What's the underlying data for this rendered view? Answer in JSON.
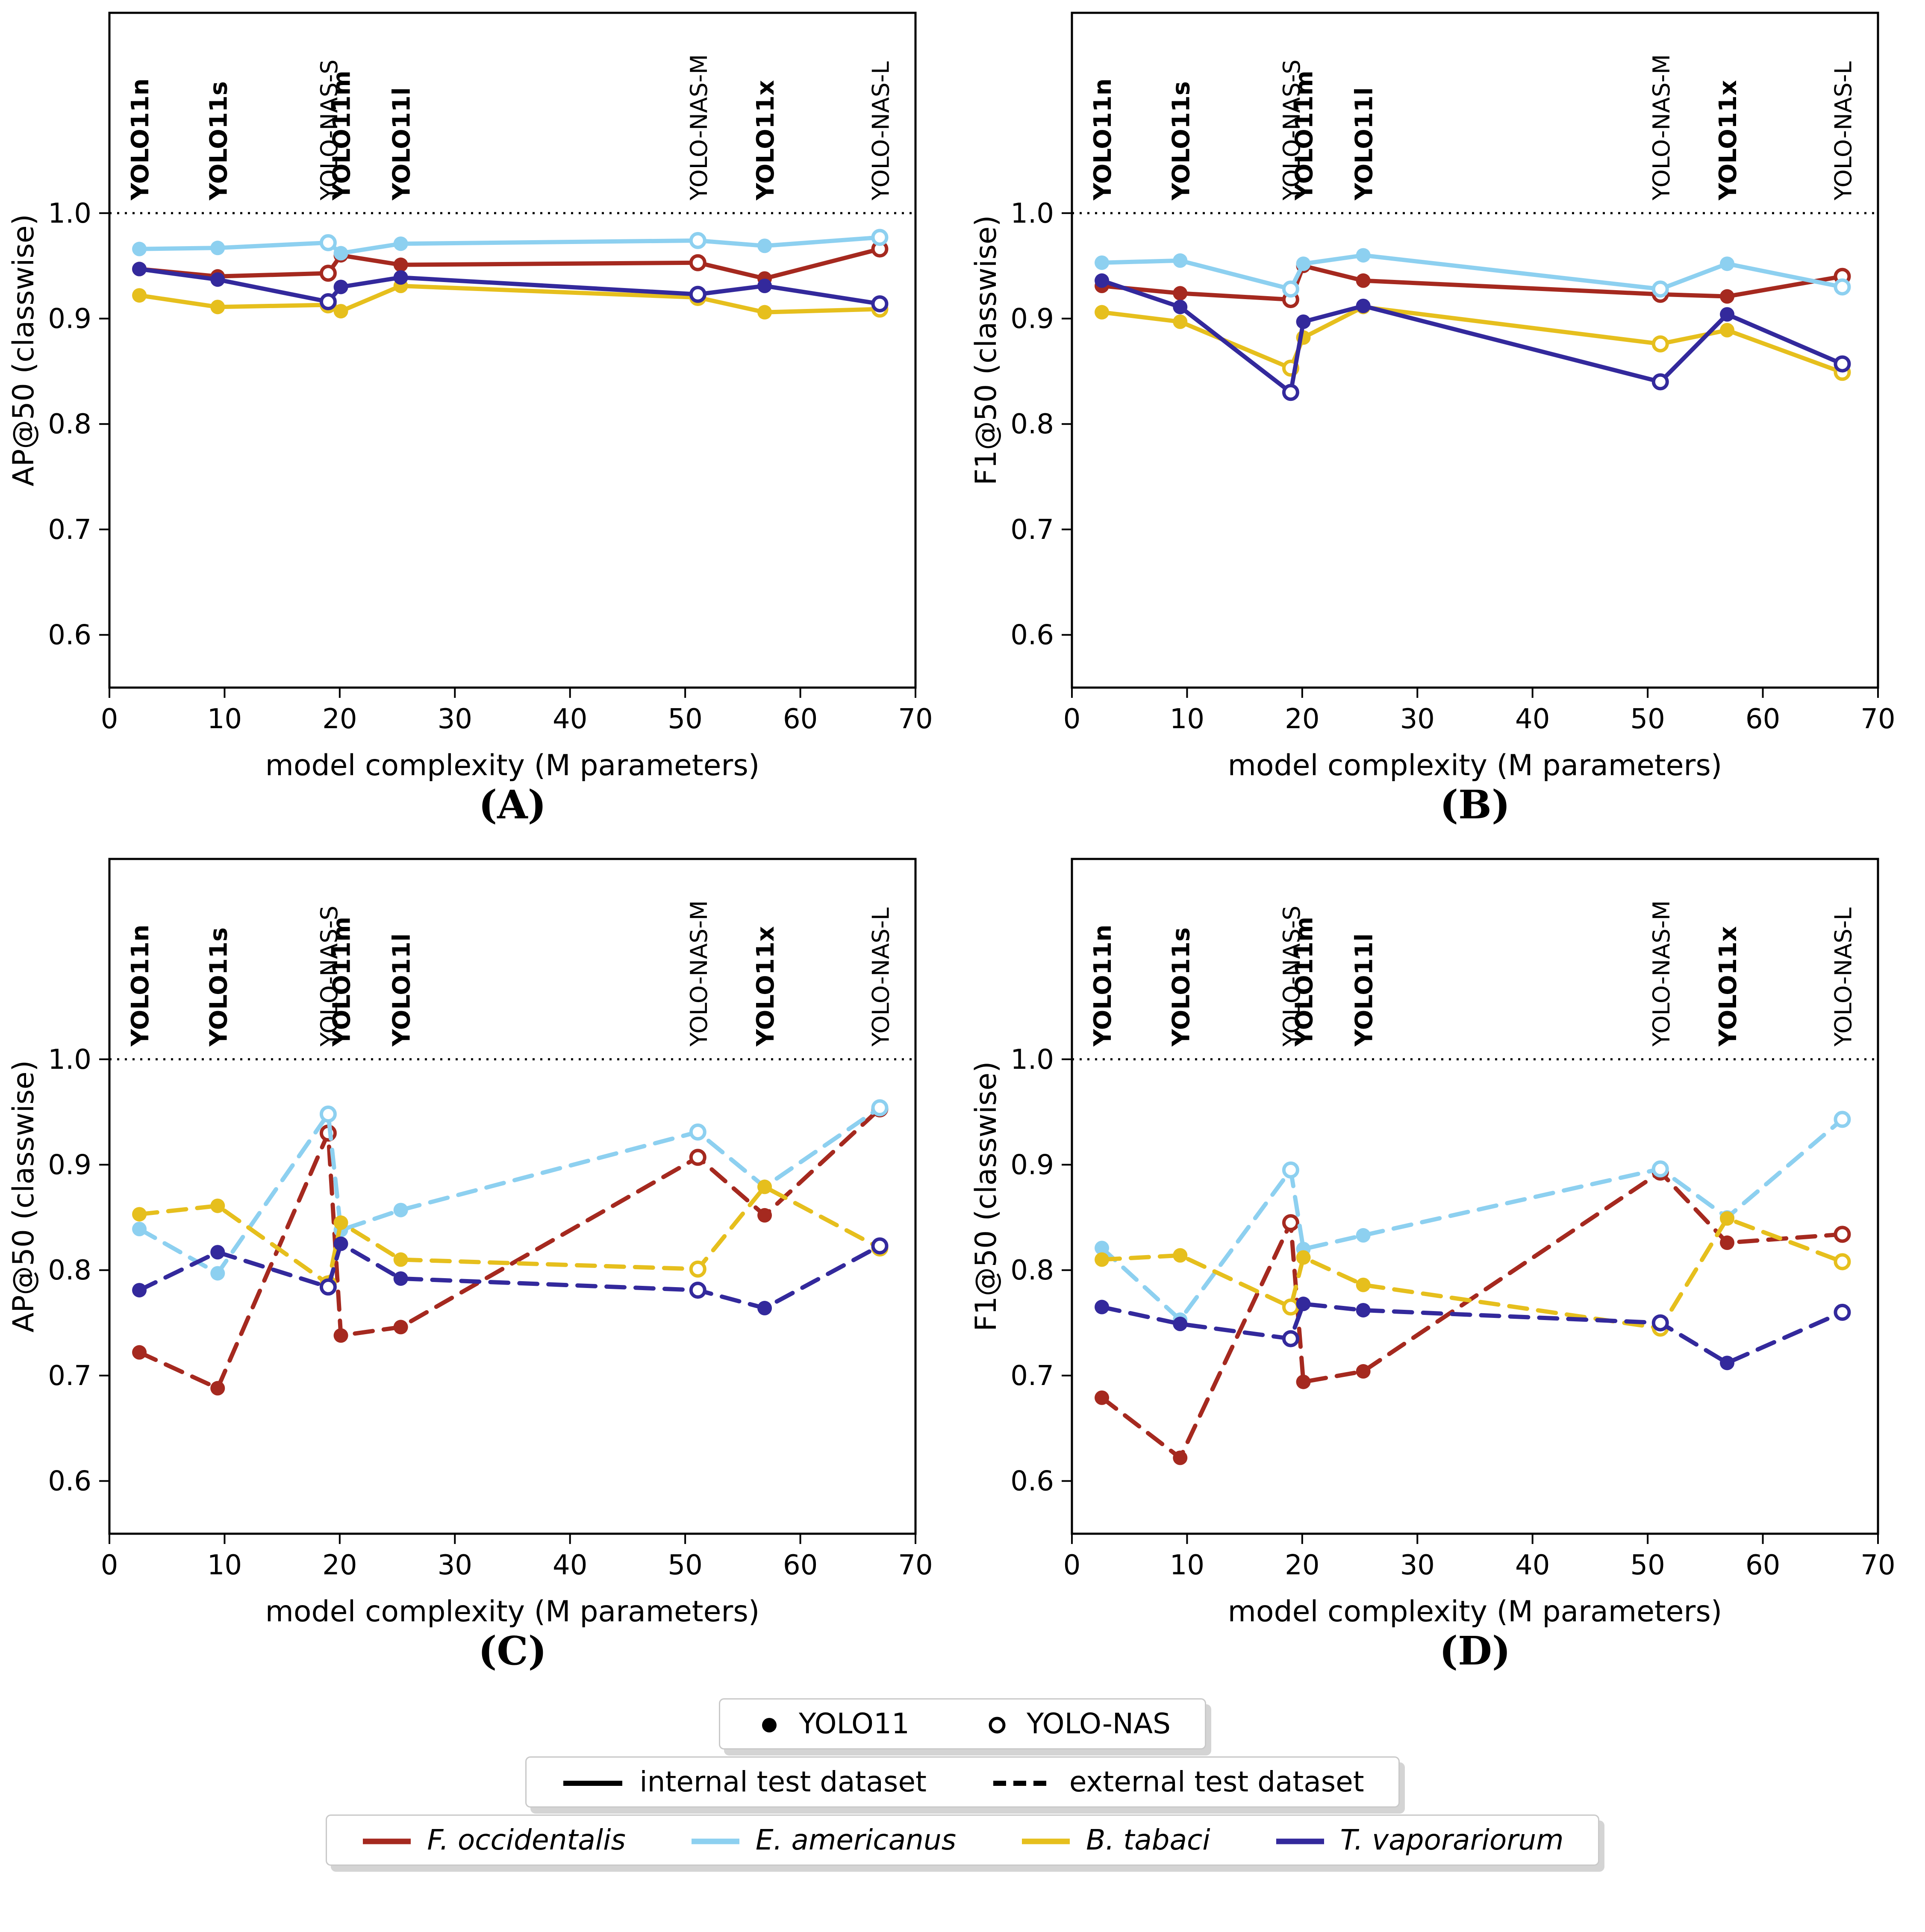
{
  "chart_data": {
    "type": "line",
    "xlabel": "model complexity (M parameters)",
    "xlim": [
      0,
      70
    ],
    "xticks": [
      0,
      10,
      20,
      30,
      40,
      50,
      60,
      70
    ],
    "yticks": [
      0.6,
      0.7,
      0.8,
      0.9,
      1.0
    ],
    "ylim_shown": [
      0.55,
      1.19
    ],
    "reference_line_y": 1.0,
    "grid": "off",
    "legend_position": "bottom-center",
    "x_values": [
      2.6,
      9.4,
      19.0,
      20.1,
      25.3,
      51.1,
      56.9,
      66.9
    ],
    "models": [
      {
        "label": "YOLO11n",
        "family": "YOLO11",
        "marker": "filled",
        "bold": true
      },
      {
        "label": "YOLO11s",
        "family": "YOLO11",
        "marker": "filled",
        "bold": true
      },
      {
        "label": "YOLO-NAS-S",
        "family": "YOLO-NAS",
        "marker": "open",
        "bold": false
      },
      {
        "label": "YOLO11m",
        "family": "YOLO11",
        "marker": "filled",
        "bold": true
      },
      {
        "label": "YOLO11l",
        "family": "YOLO11",
        "marker": "filled",
        "bold": true
      },
      {
        "label": "YOLO-NAS-M",
        "family": "YOLO-NAS",
        "marker": "open",
        "bold": false
      },
      {
        "label": "YOLO11x",
        "family": "YOLO11",
        "marker": "filled",
        "bold": true
      },
      {
        "label": "YOLO-NAS-L",
        "family": "YOLO-NAS",
        "marker": "open",
        "bold": false
      }
    ],
    "charts": [
      {
        "id": "A",
        "caption": "(A)",
        "ylabel": "AP@50 (classwise)",
        "dataset": "internal test dataset",
        "linestyle": "solid",
        "series": [
          {
            "name": "F. occidentalis",
            "color": "#a5291f",
            "values": [
              0.947,
              0.94,
              0.943,
              0.96,
              0.951,
              0.953,
              0.938,
              0.966
            ]
          },
          {
            "name": "E. americanus",
            "color": "#8dd0f0",
            "values": [
              0.966,
              0.967,
              0.972,
              0.962,
              0.971,
              0.974,
              0.969,
              0.977
            ]
          },
          {
            "name": "B. tabaci",
            "color": "#e6bf1d",
            "values": [
              0.922,
              0.911,
              0.913,
              0.907,
              0.931,
              0.92,
              0.906,
              0.909
            ]
          },
          {
            "name": "T. vaporariorum",
            "color": "#33299c",
            "values": [
              0.947,
              0.937,
              0.916,
              0.93,
              0.939,
              0.923,
              0.931,
              0.914
            ]
          }
        ]
      },
      {
        "id": "B",
        "caption": "(B)",
        "ylabel": "F1@50 (classwise)",
        "dataset": "internal test dataset",
        "linestyle": "solid",
        "series": [
          {
            "name": "F. occidentalis",
            "color": "#a5291f",
            "values": [
              0.931,
              0.924,
              0.918,
              0.95,
              0.936,
              0.923,
              0.921,
              0.94
            ]
          },
          {
            "name": "E. americanus",
            "color": "#8dd0f0",
            "values": [
              0.953,
              0.955,
              0.928,
              0.952,
              0.96,
              0.928,
              0.952,
              0.93
            ]
          },
          {
            "name": "B. tabaci",
            "color": "#e6bf1d",
            "values": [
              0.906,
              0.897,
              0.853,
              0.882,
              0.911,
              0.876,
              0.889,
              0.849
            ]
          },
          {
            "name": "T. vaporariorum",
            "color": "#33299c",
            "values": [
              0.936,
              0.911,
              0.83,
              0.897,
              0.912,
              0.84,
              0.904,
              0.857
            ]
          }
        ]
      },
      {
        "id": "C",
        "caption": "(C)",
        "ylabel": "AP@50 (classwise)",
        "dataset": "external test dataset",
        "linestyle": "dashed",
        "series": [
          {
            "name": "F. occidentalis",
            "color": "#a5291f",
            "values": [
              0.722,
              0.688,
              0.93,
              0.738,
              0.746,
              0.907,
              0.852,
              0.953
            ]
          },
          {
            "name": "E. americanus",
            "color": "#8dd0f0",
            "values": [
              0.839,
              0.797,
              0.948,
              0.838,
              0.857,
              0.931,
              0.879,
              0.954
            ]
          },
          {
            "name": "B. tabaci",
            "color": "#e6bf1d",
            "values": [
              0.853,
              0.861,
              0.787,
              0.845,
              0.81,
              0.801,
              0.879,
              0.821
            ]
          },
          {
            "name": "T. vaporariorum",
            "color": "#33299c",
            "values": [
              0.781,
              0.817,
              0.784,
              0.825,
              0.792,
              0.781,
              0.764,
              0.823
            ]
          }
        ]
      },
      {
        "id": "D",
        "caption": "(D)",
        "ylabel": "F1@50 (classwise)",
        "dataset": "external test dataset",
        "linestyle": "dashed",
        "series": [
          {
            "name": "F. occidentalis",
            "color": "#a5291f",
            "values": [
              0.679,
              0.622,
              0.845,
              0.694,
              0.704,
              0.893,
              0.826,
              0.834
            ]
          },
          {
            "name": "E. americanus",
            "color": "#8dd0f0",
            "values": [
              0.821,
              0.753,
              0.895,
              0.82,
              0.833,
              0.896,
              0.85,
              0.943
            ]
          },
          {
            "name": "B. tabaci",
            "color": "#e6bf1d",
            "values": [
              0.81,
              0.814,
              0.765,
              0.812,
              0.786,
              0.745,
              0.849,
              0.808
            ]
          },
          {
            "name": "T. vaporariorum",
            "color": "#33299c",
            "values": [
              0.765,
              0.749,
              0.735,
              0.768,
              0.762,
              0.75,
              0.712,
              0.76
            ]
          }
        ]
      }
    ]
  },
  "legend": {
    "marker_items": [
      {
        "symbol": "filled-circle",
        "label": "YOLO11"
      },
      {
        "symbol": "open-circle",
        "label": "YOLO-NAS"
      }
    ],
    "linestyle_items": [
      {
        "style": "solid",
        "label": "internal test dataset"
      },
      {
        "style": "dashed",
        "label": "external test dataset"
      }
    ],
    "species": [
      {
        "label": "F. occidentalis",
        "color": "#a5291f"
      },
      {
        "label": "E. americanus",
        "color": "#8dd0f0"
      },
      {
        "label": "B. tabaci",
        "color": "#e6bf1d"
      },
      {
        "label": "T. vaporariorum",
        "color": "#33299c"
      }
    ]
  }
}
